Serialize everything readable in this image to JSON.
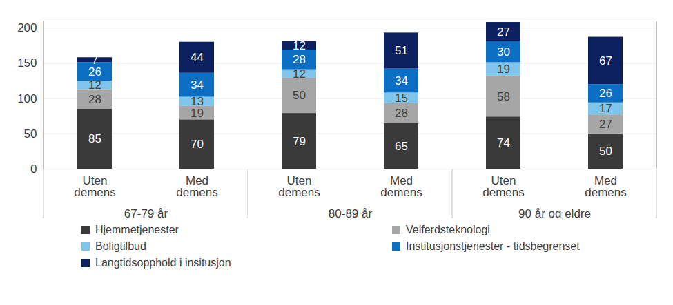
{
  "chart_data": {
    "type": "bar",
    "stacked": true,
    "data_labels": true,
    "grid": true,
    "legend": "bottom",
    "categories": [
      "Uten demens",
      "Med demens",
      "Uten demens",
      "Med demens",
      "Uten demens",
      "Med demens"
    ],
    "category_groups": [
      "67-79 år",
      "67-79 år",
      "80-89 år",
      "80-89 år",
      "90 år og eldre",
      "90 år og eldre"
    ],
    "series": [
      {
        "name": "Hjemmetjenester",
        "color": "#3a3a3a",
        "values": [
          85,
          70,
          79,
          65,
          74,
          50
        ]
      },
      {
        "name": "Velferdsteknologi",
        "color": "#a6a6a6",
        "values": [
          28,
          19,
          50,
          28,
          58,
          27
        ]
      },
      {
        "name": "Boligtilbud",
        "color": "#7fc4ea",
        "values": [
          12,
          13,
          12,
          15,
          19,
          17
        ]
      },
      {
        "name": "Institusjonstjenester - tidsbegrenset",
        "color": "#0a6fc2",
        "values": [
          26,
          34,
          28,
          34,
          30,
          26
        ]
      },
      {
        "name": "Langtidsopphold i insitusjon",
        "color": "#0c1f5e",
        "values": [
          7,
          44,
          12,
          51,
          27,
          67
        ]
      }
    ],
    "ylim": [
      0,
      210
    ],
    "yticks": [
      0,
      50,
      100,
      150,
      200
    ]
  }
}
